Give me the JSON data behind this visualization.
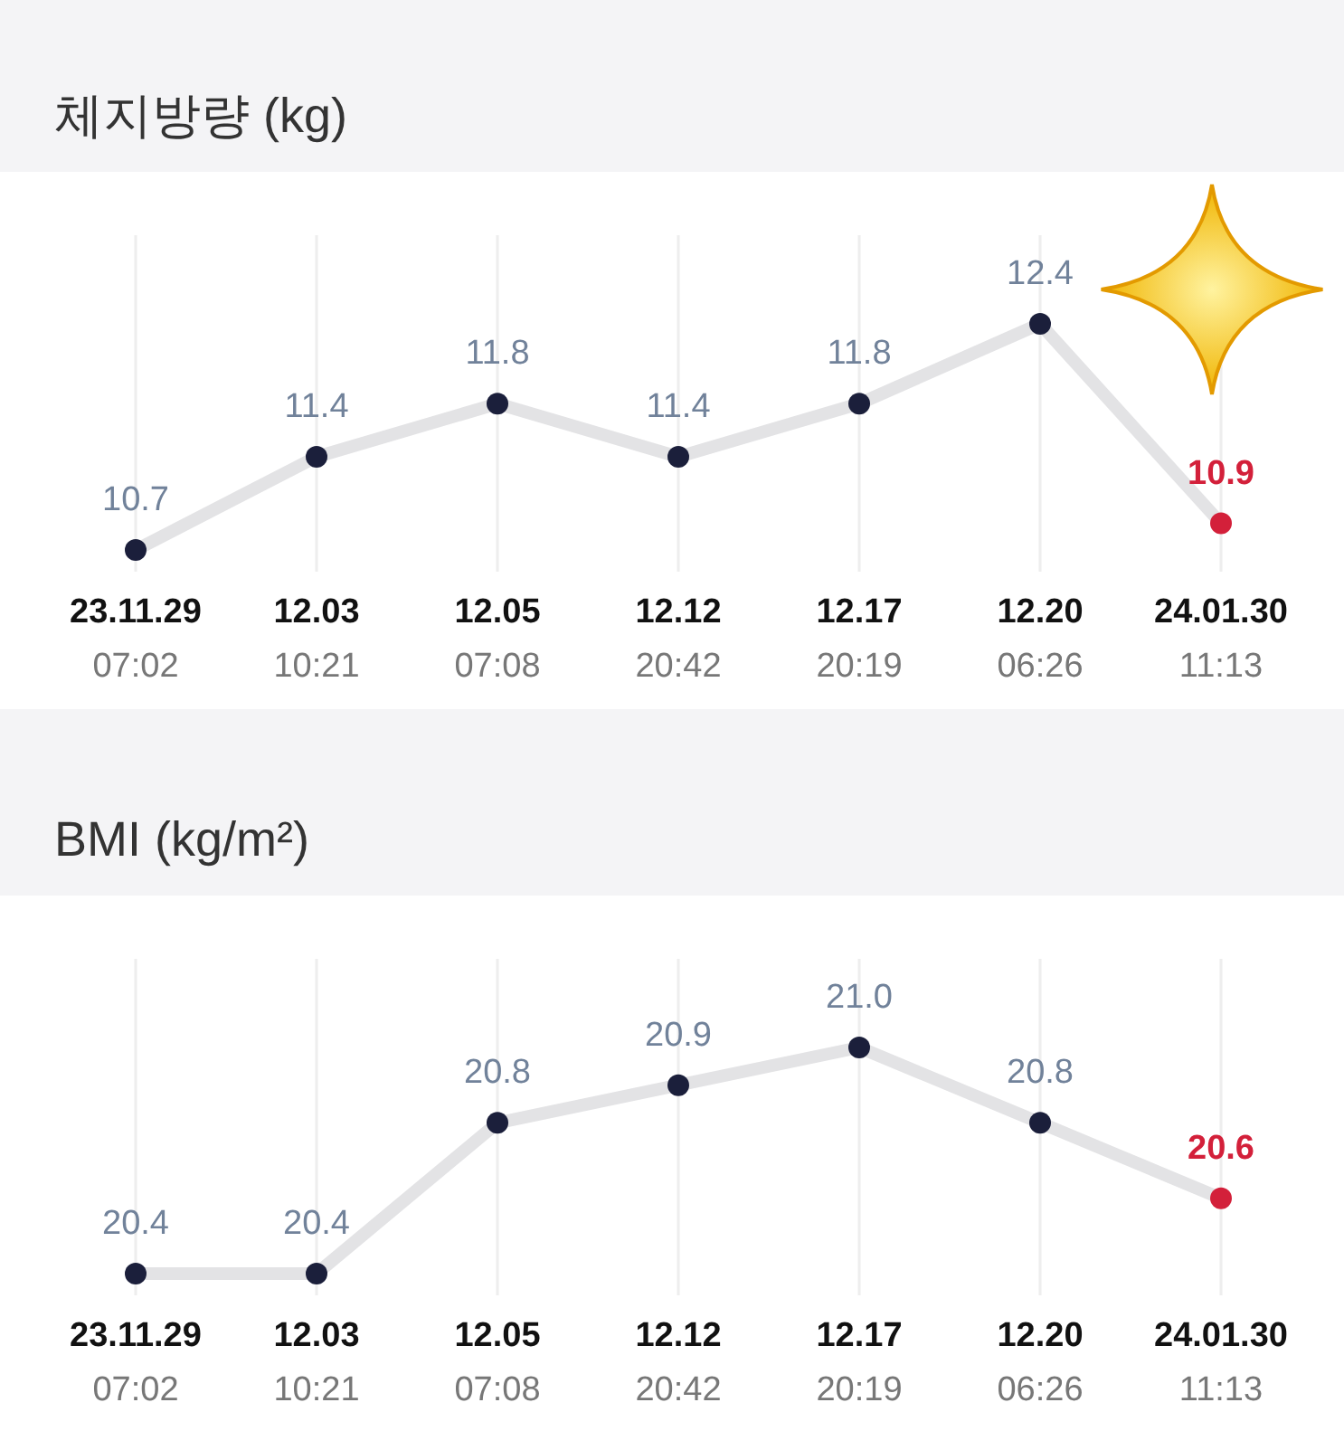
{
  "chart_data": [
    {
      "type": "line",
      "title": "체지방량 (kg)",
      "categories": [
        "23.11.29\n07:02",
        "12.03\n10:21",
        "12.05\n07:08",
        "12.12\n20:42",
        "12.17\n20:19",
        "12.20\n06:26",
        "24.01.30\n11:13"
      ],
      "series": [
        {
          "color": "#1b1f3b",
          "colors": [
            "#1b1f3b",
            "#1b1f3b",
            "#1b1f3b",
            "#1b1f3b",
            "#1b1f3b",
            "#1b1f3b",
            "#d3203a"
          ],
          "values": [
            10.7,
            11.4,
            11.8,
            11.4,
            11.8,
            12.4,
            10.9
          ],
          "value_labels": [
            "10.7",
            "11.4",
            "11.8",
            "11.4",
            "11.8",
            "12.4",
            "10.9"
          ]
        }
      ],
      "grid": "x",
      "marker": "circle"
    },
    {
      "type": "line",
      "title": "BMI (kg/m²)",
      "categories": [
        "23.11.29\n07:02",
        "12.03\n10:21",
        "12.05\n07:08",
        "12.12\n20:42",
        "12.17\n20:19",
        "12.20\n06:26",
        "24.01.30\n11:13"
      ],
      "series": [
        {
          "color": "#1b1f3b",
          "colors": [
            "#1b1f3b",
            "#1b1f3b",
            "#1b1f3b",
            "#1b1f3b",
            "#1b1f3b",
            "#1b1f3b",
            "#d3203a"
          ],
          "values": [
            20.4,
            20.4,
            20.8,
            20.9,
            21.0,
            20.8,
            20.6
          ],
          "value_labels": [
            "20.4",
            "20.4",
            "20.8",
            "20.9",
            "21.0",
            "20.8",
            "20.6"
          ]
        }
      ],
      "grid": "x",
      "marker": "circle"
    }
  ]
}
